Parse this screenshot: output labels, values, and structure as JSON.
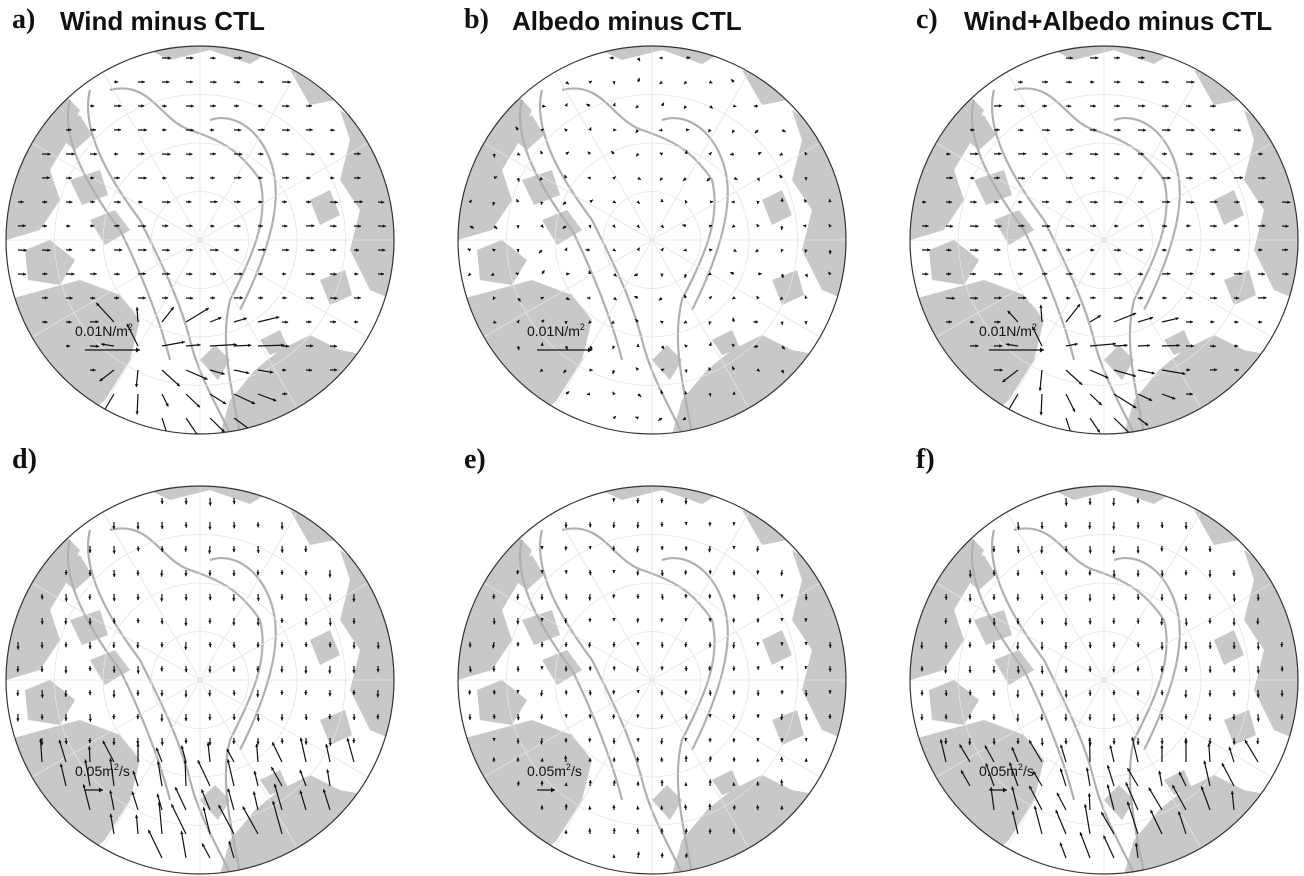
{
  "figure": {
    "panels": [
      {
        "id": "a",
        "label": "a)",
        "title": "Wind minus CTL",
        "scale_value": "0.01N/m",
        "scale_sup": "2",
        "scale_suffix": "",
        "variable": "stress",
        "pattern": "wind",
        "center": [
          200,
          226
        ]
      },
      {
        "id": "b",
        "label": "b)",
        "title": "Albedo minus CTL",
        "scale_value": "0.01N/m",
        "scale_sup": "2",
        "scale_suffix": "",
        "variable": "stress",
        "pattern": "albedo",
        "center": [
          652,
          226
        ]
      },
      {
        "id": "c",
        "label": "c)",
        "title": "Wind+Albedo minus CTL",
        "scale_value": "0.01N/m",
        "scale_sup": "2",
        "scale_suffix": "",
        "variable": "stress",
        "pattern": "wind",
        "center": [
          1104,
          226
        ]
      },
      {
        "id": "d",
        "label": "d)",
        "title": "",
        "scale_value": "0.05m",
        "scale_sup": "2",
        "scale_suffix": "/s",
        "variable": "transport",
        "pattern": "wind",
        "center": [
          200,
          666
        ]
      },
      {
        "id": "e",
        "label": "e)",
        "title": "",
        "scale_value": "0.05m",
        "scale_sup": "2",
        "scale_suffix": "/s",
        "variable": "transport",
        "pattern": "albedo",
        "center": [
          652,
          666
        ]
      },
      {
        "id": "f",
        "label": "f)",
        "title": "",
        "scale_value": "0.05m",
        "scale_sup": "2",
        "scale_suffix": "/s",
        "variable": "transport",
        "pattern": "wind",
        "center": [
          1104,
          666
        ]
      }
    ],
    "colors": {
      "land": "#c8c8c8",
      "contour": "#b0b0b0",
      "arrow": "#111111",
      "outline": "#333333"
    }
  }
}
